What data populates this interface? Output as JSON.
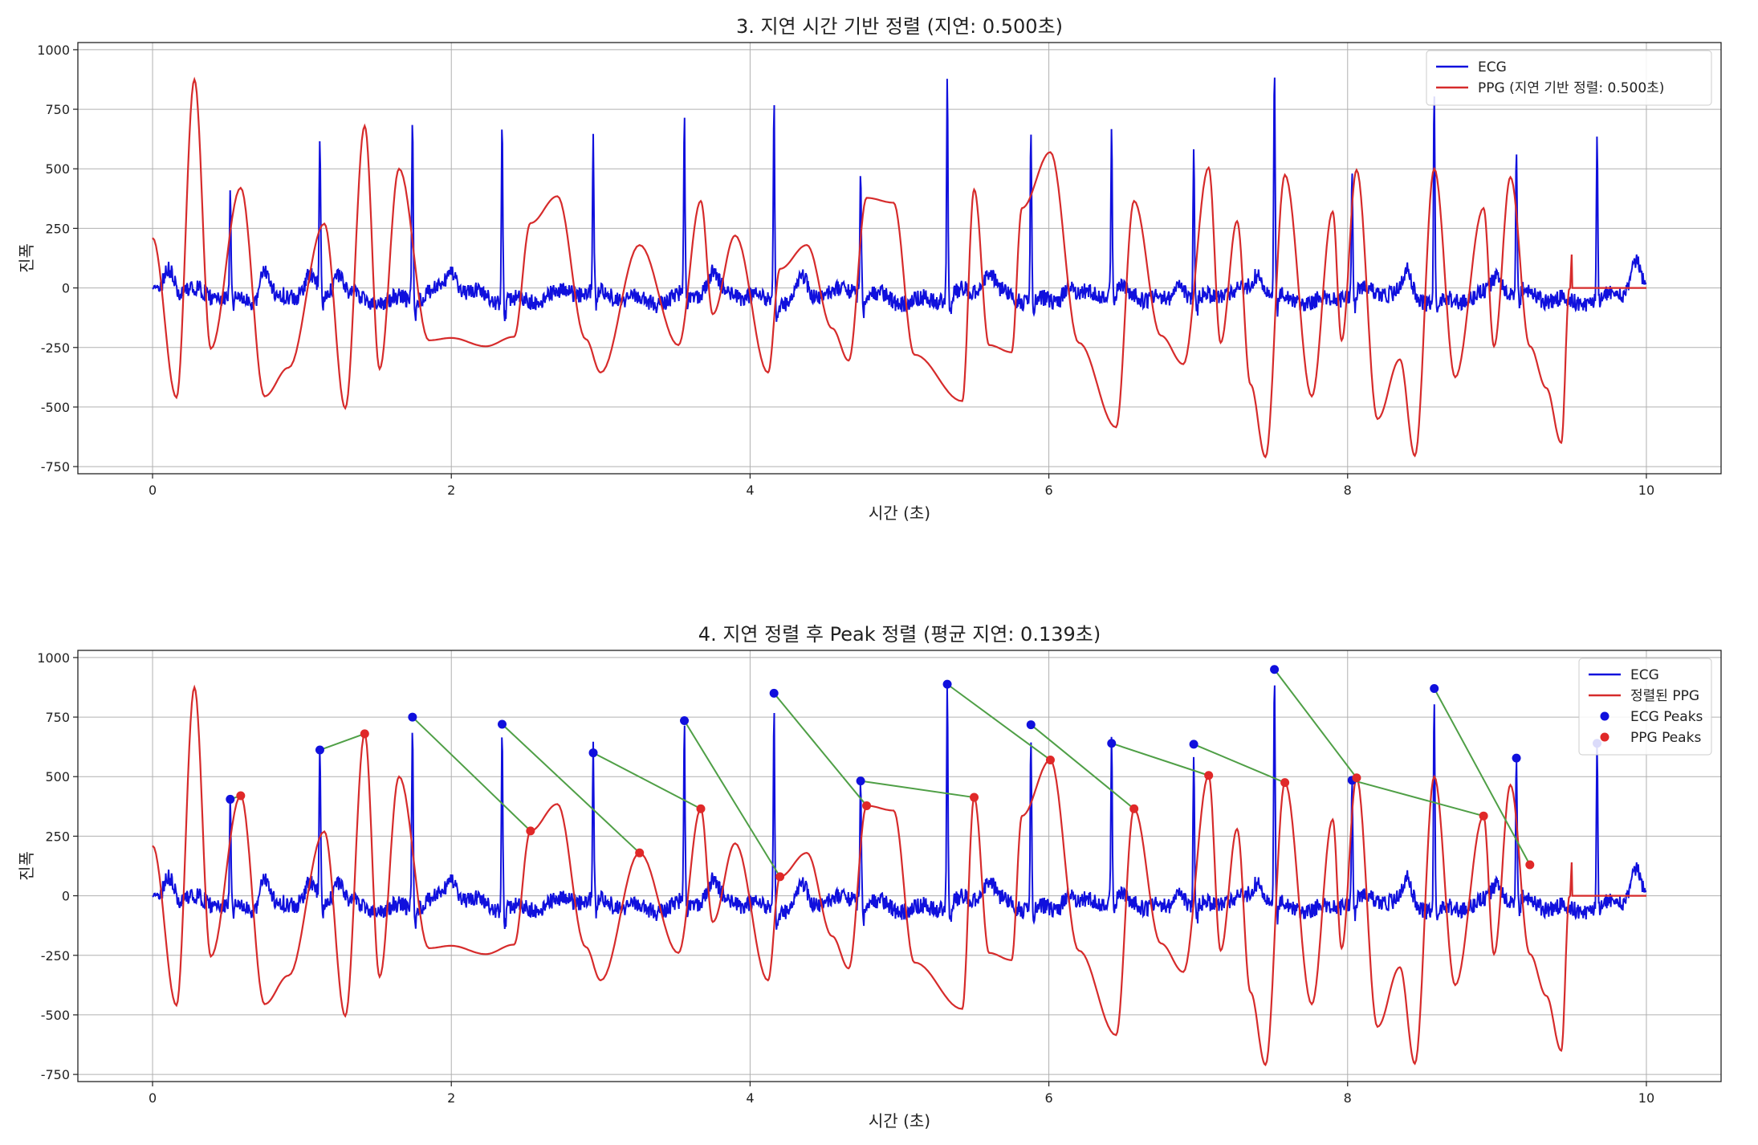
{
  "chart_data": [
    {
      "type": "line",
      "title": "3. 지연 시간 기반 정렬 (지연: 0.500초)",
      "xlabel": "시간 (초)",
      "ylabel": "진폭",
      "xlim": [
        -0.5,
        10.5
      ],
      "ylim": [
        -780,
        1030
      ],
      "x_ticks": [
        0,
        2,
        4,
        6,
        8,
        10
      ],
      "y_ticks": [
        -750,
        -500,
        -250,
        0,
        250,
        500,
        750,
        1000
      ],
      "grid": true,
      "legend_position": "top-right",
      "colors": {
        "ecg": "#1010dd",
        "ppg": "#d62b2b"
      },
      "series": [
        {
          "name": "ECG",
          "kind": "ecg"
        },
        {
          "name": "PPG (지연 기반 정렬: 0.500초)",
          "kind": "ppg"
        }
      ],
      "ecg_r_peaks": [
        [
          0.52,
          405
        ],
        [
          1.12,
          612
        ],
        [
          1.74,
          750
        ],
        [
          2.34,
          720
        ],
        [
          2.95,
          600
        ],
        [
          3.56,
          735
        ],
        [
          4.16,
          850
        ],
        [
          4.74,
          482
        ],
        [
          5.32,
          888
        ],
        [
          5.88,
          718
        ],
        [
          6.42,
          640
        ],
        [
          6.97,
          636
        ],
        [
          7.51,
          950
        ],
        [
          8.03,
          485
        ],
        [
          8.58,
          870
        ],
        [
          9.13,
          578
        ],
        [
          9.67,
          640
        ]
      ],
      "ppg_peaks": [
        [
          0.28,
          875
        ],
        [
          0.59,
          420
        ],
        [
          1.15,
          270
        ],
        [
          1.42,
          680
        ],
        [
          1.65,
          500
        ],
        [
          2.53,
          272
        ],
        [
          2.71,
          385
        ],
        [
          3.26,
          180
        ],
        [
          3.67,
          365
        ],
        [
          3.9,
          220
        ],
        [
          4.2,
          80
        ],
        [
          4.38,
          180
        ],
        [
          4.78,
          378
        ],
        [
          4.96,
          358
        ],
        [
          5.5,
          413
        ],
        [
          5.82,
          335
        ],
        [
          6.01,
          570
        ],
        [
          6.57,
          365
        ],
        [
          7.07,
          505
        ],
        [
          7.26,
          280
        ],
        [
          7.58,
          475
        ],
        [
          7.9,
          320
        ],
        [
          8.06,
          495
        ],
        [
          8.58,
          500
        ],
        [
          8.91,
          335
        ],
        [
          9.09,
          465
        ]
      ],
      "ppg_troughs": [
        [
          0.16,
          -460
        ],
        [
          0.39,
          -255
        ],
        [
          0.75,
          -455
        ],
        [
          0.91,
          -335
        ],
        [
          1.29,
          -505
        ],
        [
          1.52,
          -340
        ],
        [
          1.85,
          -220
        ],
        [
          2.0,
          -210
        ],
        [
          2.23,
          -245
        ],
        [
          2.42,
          -205
        ],
        [
          2.9,
          -215
        ],
        [
          3.0,
          -355
        ],
        [
          3.52,
          -240
        ],
        [
          3.75,
          -110
        ],
        [
          4.12,
          -355
        ],
        [
          4.55,
          -170
        ],
        [
          4.66,
          -305
        ],
        [
          5.1,
          -280
        ],
        [
          5.42,
          -475
        ],
        [
          5.6,
          -240
        ],
        [
          5.75,
          -270
        ],
        [
          6.2,
          -230
        ],
        [
          6.45,
          -585
        ],
        [
          6.75,
          -200
        ],
        [
          6.9,
          -320
        ],
        [
          7.15,
          -230
        ],
        [
          7.35,
          -405
        ],
        [
          7.45,
          -710
        ],
        [
          7.76,
          -455
        ],
        [
          7.96,
          -220
        ],
        [
          8.2,
          -550
        ],
        [
          8.35,
          -300
        ],
        [
          8.45,
          -705
        ],
        [
          8.72,
          -375
        ],
        [
          8.98,
          -245
        ],
        [
          9.22,
          -245
        ],
        [
          9.33,
          -420
        ],
        [
          9.43,
          -650
        ]
      ],
      "ppg_flat_from": 9.5,
      "alignment_pairs": []
    },
    {
      "type": "line",
      "title": "4. 지연 정렬 후 Peak 정렬 (평균 지연: 0.139초)",
      "xlabel": "시간 (초)",
      "ylabel": "진폭",
      "xlim": [
        -0.5,
        10.5
      ],
      "ylim": [
        -780,
        1030
      ],
      "x_ticks": [
        0,
        2,
        4,
        6,
        8,
        10
      ],
      "y_ticks": [
        -750,
        -500,
        -250,
        0,
        250,
        500,
        750,
        1000
      ],
      "grid": true,
      "legend_position": "top-right",
      "colors": {
        "ecg": "#1010dd",
        "ppg": "#d62b2b",
        "ecg_peaks": "#1010dd",
        "ppg_peaks": "#e02828",
        "pair_line": "#4f9f46"
      },
      "series": [
        {
          "name": "ECG",
          "kind": "ecg"
        },
        {
          "name": "정렬된 PPG",
          "kind": "ppg"
        },
        {
          "name": "ECG Peaks",
          "kind": "ecg-peaks"
        },
        {
          "name": "PPG Peaks",
          "kind": "ppg-peaks"
        }
      ],
      "ecg_r_peaks": [
        [
          0.52,
          405
        ],
        [
          1.12,
          612
        ],
        [
          1.74,
          750
        ],
        [
          2.34,
          720
        ],
        [
          2.95,
          600
        ],
        [
          3.56,
          735
        ],
        [
          4.16,
          850
        ],
        [
          4.74,
          482
        ],
        [
          5.32,
          888
        ],
        [
          5.88,
          718
        ],
        [
          6.42,
          640
        ],
        [
          6.97,
          636
        ],
        [
          7.51,
          950
        ],
        [
          8.03,
          485
        ],
        [
          8.58,
          870
        ],
        [
          9.13,
          578
        ],
        [
          9.67,
          640
        ]
      ],
      "ppg_peaks": [
        [
          0.28,
          875
        ],
        [
          0.59,
          420
        ],
        [
          1.15,
          270
        ],
        [
          1.42,
          680
        ],
        [
          1.65,
          500
        ],
        [
          2.53,
          272
        ],
        [
          2.71,
          385
        ],
        [
          3.26,
          180
        ],
        [
          3.67,
          365
        ],
        [
          3.9,
          220
        ],
        [
          4.2,
          80
        ],
        [
          4.38,
          180
        ],
        [
          4.78,
          378
        ],
        [
          4.96,
          358
        ],
        [
          5.5,
          413
        ],
        [
          5.82,
          335
        ],
        [
          6.01,
          570
        ],
        [
          6.57,
          365
        ],
        [
          7.07,
          505
        ],
        [
          7.26,
          280
        ],
        [
          7.58,
          475
        ],
        [
          7.9,
          320
        ],
        [
          8.06,
          495
        ],
        [
          8.58,
          500
        ],
        [
          8.91,
          335
        ],
        [
          9.09,
          465
        ]
      ],
      "ppg_troughs": [
        [
          0.16,
          -460
        ],
        [
          0.39,
          -255
        ],
        [
          0.75,
          -455
        ],
        [
          0.91,
          -335
        ],
        [
          1.29,
          -505
        ],
        [
          1.52,
          -340
        ],
        [
          1.85,
          -220
        ],
        [
          2.0,
          -210
        ],
        [
          2.23,
          -245
        ],
        [
          2.42,
          -205
        ],
        [
          2.9,
          -215
        ],
        [
          3.0,
          -355
        ],
        [
          3.52,
          -240
        ],
        [
          3.75,
          -110
        ],
        [
          4.12,
          -355
        ],
        [
          4.55,
          -170
        ],
        [
          4.66,
          -305
        ],
        [
          5.1,
          -280
        ],
        [
          5.42,
          -475
        ],
        [
          5.6,
          -240
        ],
        [
          5.75,
          -270
        ],
        [
          6.2,
          -230
        ],
        [
          6.45,
          -585
        ],
        [
          6.75,
          -200
        ],
        [
          6.9,
          -320
        ],
        [
          7.15,
          -230
        ],
        [
          7.35,
          -405
        ],
        [
          7.45,
          -710
        ],
        [
          7.76,
          -455
        ],
        [
          7.96,
          -220
        ],
        [
          8.2,
          -550
        ],
        [
          8.35,
          -300
        ],
        [
          8.45,
          -705
        ],
        [
          8.72,
          -375
        ],
        [
          8.98,
          -245
        ],
        [
          9.22,
          -245
        ],
        [
          9.33,
          -420
        ],
        [
          9.43,
          -650
        ]
      ],
      "ppg_flat_from": 9.5,
      "ecg_peak_markers": [
        [
          0.52,
          405
        ],
        [
          1.12,
          612
        ],
        [
          1.74,
          750
        ],
        [
          2.34,
          720
        ],
        [
          2.95,
          600
        ],
        [
          3.56,
          735
        ],
        [
          4.16,
          850
        ],
        [
          4.74,
          482
        ],
        [
          5.32,
          888
        ],
        [
          5.88,
          718
        ],
        [
          6.42,
          640
        ],
        [
          6.97,
          636
        ],
        [
          7.51,
          950
        ],
        [
          8.03,
          485
        ],
        [
          8.58,
          870
        ],
        [
          9.13,
          578
        ],
        [
          9.67,
          640
        ]
      ],
      "ppg_peak_markers": [
        [
          0.59,
          420
        ],
        [
          1.42,
          680
        ],
        [
          2.53,
          272
        ],
        [
          3.26,
          180
        ],
        [
          3.67,
          365
        ],
        [
          4.2,
          80
        ],
        [
          4.78,
          378
        ],
        [
          5.5,
          413
        ],
        [
          6.01,
          570
        ],
        [
          6.57,
          365
        ],
        [
          7.07,
          505
        ],
        [
          7.58,
          475
        ],
        [
          8.06,
          495
        ],
        [
          8.91,
          335
        ],
        [
          9.22,
          130
        ]
      ],
      "alignment_pairs": [
        [
          [
            0.52,
            405
          ],
          [
            0.59,
            420
          ]
        ],
        [
          [
            1.12,
            612
          ],
          [
            1.42,
            680
          ]
        ],
        [
          [
            1.74,
            750
          ],
          [
            2.53,
            272
          ]
        ],
        [
          [
            2.34,
            720
          ],
          [
            3.26,
            180
          ]
        ],
        [
          [
            2.95,
            600
          ],
          [
            3.67,
            365
          ]
        ],
        [
          [
            3.56,
            735
          ],
          [
            4.2,
            80
          ]
        ],
        [
          [
            4.16,
            850
          ],
          [
            4.78,
            378
          ]
        ],
        [
          [
            4.74,
            482
          ],
          [
            5.5,
            413
          ]
        ],
        [
          [
            5.32,
            888
          ],
          [
            6.01,
            570
          ]
        ],
        [
          [
            5.88,
            718
          ],
          [
            6.57,
            365
          ]
        ],
        [
          [
            6.42,
            640
          ],
          [
            7.07,
            505
          ]
        ],
        [
          [
            6.97,
            636
          ],
          [
            7.58,
            475
          ]
        ],
        [
          [
            7.51,
            950
          ],
          [
            8.06,
            495
          ]
        ],
        [
          [
            8.03,
            485
          ],
          [
            8.91,
            335
          ]
        ],
        [
          [
            8.58,
            870
          ],
          [
            9.22,
            130
          ]
        ]
      ]
    }
  ]
}
